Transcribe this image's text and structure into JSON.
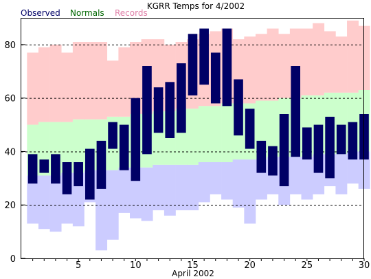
{
  "chart_data": {
    "type": "bar",
    "title": "KGRR Temps for 4/2002",
    "xlabel": "April 2002",
    "ylabel": "",
    "xlim": [
      0.5,
      30.5
    ],
    "ylim": [
      0,
      90
    ],
    "x_ticks": [
      5,
      10,
      15,
      20,
      25,
      30
    ],
    "x_tick_labels": [
      "5",
      "10",
      "15",
      "20",
      "25",
      "30"
    ],
    "y_ticks": [
      0,
      20,
      40,
      60,
      80
    ],
    "y_tick_labels": [
      "0",
      "20",
      "40",
      "60",
      "80"
    ],
    "grid": {
      "horizontal": true,
      "style": "dashed",
      "values": [
        20,
        40,
        60,
        80
      ]
    },
    "legend": {
      "placement": "top-left"
    },
    "days": [
      1,
      2,
      3,
      4,
      5,
      6,
      7,
      8,
      9,
      10,
      11,
      12,
      13,
      14,
      15,
      16,
      17,
      18,
      19,
      20,
      21,
      22,
      23,
      24,
      25,
      26,
      27,
      28,
      29,
      30
    ],
    "series": [
      {
        "name": "Records",
        "color": "#ffcccc",
        "highs": [
          77,
          79,
          80,
          77,
          81,
          81,
          81,
          74,
          79,
          81,
          82,
          82,
          80,
          81,
          82,
          84,
          85,
          86,
          82,
          83,
          84,
          86,
          84,
          86,
          86,
          88,
          85,
          83,
          89,
          87
        ],
        "lows": [
          13,
          11,
          10,
          13,
          12,
          21,
          3,
          7,
          17,
          15,
          14,
          18,
          16,
          18,
          18,
          21,
          24,
          22,
          19,
          13,
          22,
          24,
          20,
          24,
          22,
          24,
          27,
          24,
          28,
          26
        ]
      },
      {
        "name": "Normals",
        "color": "#ccffcc",
        "highs": [
          50,
          51,
          51,
          51,
          52,
          52,
          52,
          53,
          53,
          54,
          54,
          55,
          55,
          56,
          56,
          57,
          57,
          58,
          58,
          58,
          59,
          59,
          60,
          60,
          61,
          61,
          62,
          62,
          62,
          63
        ],
        "lows": [
          31,
          31,
          31,
          32,
          32,
          33,
          33,
          33,
          34,
          34,
          34,
          35,
          35,
          35,
          35,
          36,
          36,
          36,
          37,
          37,
          37,
          38,
          38,
          38,
          38,
          39,
          39,
          39,
          40,
          40
        ]
      },
      {
        "name": "Observed",
        "color": "#000066",
        "highs": [
          39,
          37,
          39,
          36,
          36,
          41,
          44,
          51,
          50,
          60,
          72,
          64,
          66,
          73,
          84,
          86,
          77,
          86,
          67,
          56,
          44,
          42,
          54,
          72,
          49,
          50,
          53,
          50,
          51,
          54
        ],
        "lows": [
          28,
          32,
          28,
          24,
          27,
          22,
          26,
          41,
          33,
          29,
          39,
          47,
          45,
          47,
          61,
          65,
          58,
          57,
          46,
          41,
          32,
          31,
          27,
          38,
          37,
          32,
          30,
          39,
          37,
          37
        ]
      }
    ]
  }
}
